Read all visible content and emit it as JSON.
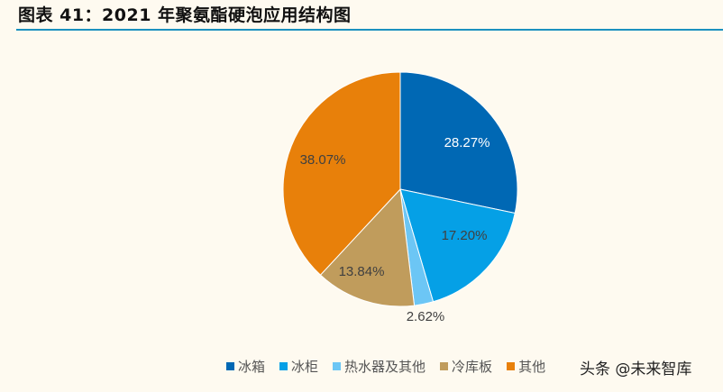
{
  "title": "图表 41：2021 年聚氨酯硬泡应用结构图",
  "watermark": "头条 @未来智库",
  "chart_data": {
    "type": "pie",
    "title": "2021 年聚氨酯硬泡应用结构图",
    "categories": [
      "冰箱",
      "冰柜",
      "热水器及其他",
      "冷库板",
      "其他"
    ],
    "values": [
      28.27,
      17.2,
      2.62,
      13.84,
      38.07
    ],
    "labels": [
      "28.27%",
      "17.20%",
      "2.62%",
      "13.84%",
      "38.07%"
    ],
    "colors": [
      "#0068b4",
      "#05a0e6",
      "#6cc6f5",
      "#c09c5c",
      "#e8800a"
    ],
    "label_colors": [
      "#ffffff",
      "#404040",
      "#404040",
      "#404040",
      "#404040"
    ],
    "start_angle_deg": 0,
    "direction": "clockwise",
    "legend_position": "bottom"
  }
}
